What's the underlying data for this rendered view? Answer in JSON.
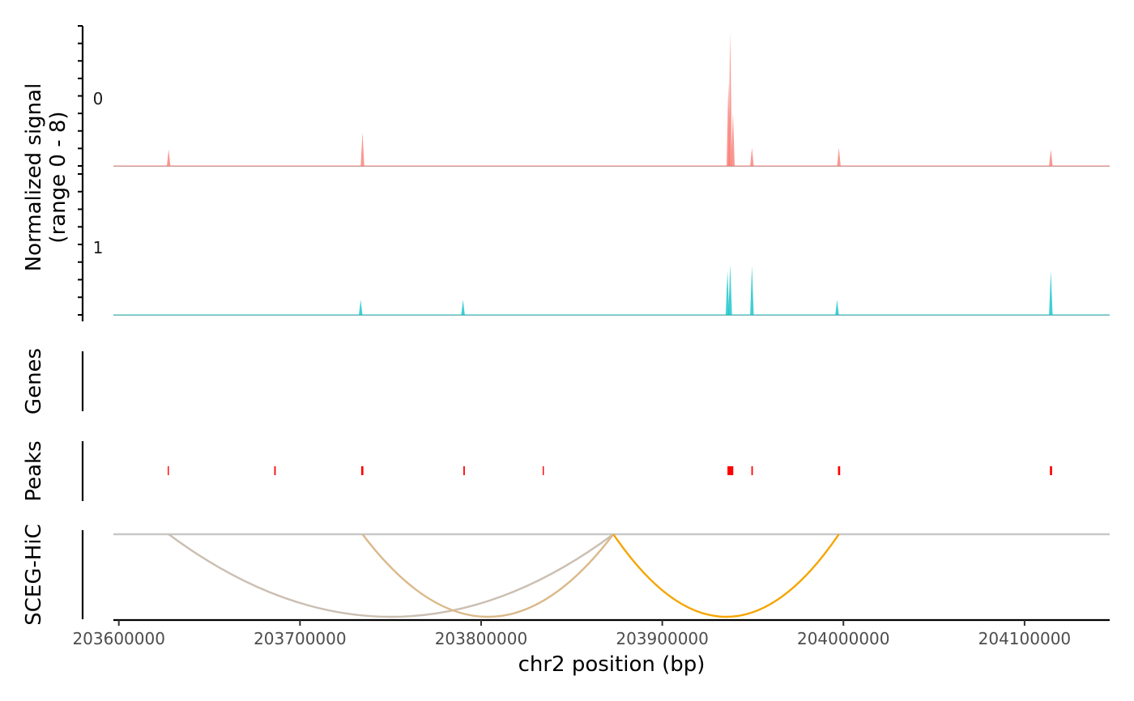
{
  "chart_data": {
    "type": "area",
    "xlabel": "chr2 position (bp)",
    "xlim": [
      203597000,
      204147000
    ],
    "xticks": [
      203600000,
      203700000,
      203800000,
      203900000,
      204000000,
      204100000
    ],
    "xtick_labels": [
      "203600000",
      "203700000",
      "203800000",
      "203900000",
      "204000000",
      "204100000"
    ],
    "coverage": {
      "ylabel": "Normalized signal",
      "ylabel_range": "(range 0 - 8)",
      "ylim": [
        0,
        8
      ],
      "tracks": [
        {
          "label": "0",
          "color": "#F8766D",
          "peaks": [
            {
              "x": 203627500,
              "y": 1.0
            },
            {
              "x": 203734500,
              "y": 2.0
            },
            {
              "x": 203937500,
              "y": 8.0
            },
            {
              "x": 203936500,
              "y": 5.0
            },
            {
              "x": 203939000,
              "y": 3.2
            },
            {
              "x": 203949500,
              "y": 1.1
            },
            {
              "x": 203997500,
              "y": 1.1
            },
            {
              "x": 204114500,
              "y": 1.0
            }
          ]
        },
        {
          "label": "1",
          "color": "#00BFC4",
          "peaks": [
            {
              "x": 203733500,
              "y": 0.9
            },
            {
              "x": 203790000,
              "y": 0.9
            },
            {
              "x": 203936000,
              "y": 2.6
            },
            {
              "x": 203937500,
              "y": 3.0
            },
            {
              "x": 203949500,
              "y": 2.9
            },
            {
              "x": 203996500,
              "y": 0.9
            },
            {
              "x": 204114500,
              "y": 2.6
            }
          ]
        }
      ]
    },
    "genes": {
      "label": "Genes"
    },
    "peaks_track": {
      "label": "Peaks",
      "color": "#FF0000",
      "regions": [
        [
          203627000,
          203627600
        ],
        [
          203685800,
          203686600
        ],
        [
          203733800,
          203735000
        ],
        [
          203790200,
          203791000
        ],
        [
          203834000,
          203834600
        ],
        [
          203936000,
          203939200
        ],
        [
          203949200,
          203950000
        ],
        [
          203997000,
          203998200
        ],
        [
          204114000,
          204115200
        ]
      ]
    },
    "links": {
      "label": "SCEG-HiC",
      "baseline_color": "#C8C8C8",
      "arcs": [
        {
          "start": 203627500,
          "end": 203873000,
          "color": "#CBBFB2",
          "depth": 1.0
        },
        {
          "start": 203734500,
          "end": 203873000,
          "color": "#DBB98A",
          "depth": 1.0
        },
        {
          "start": 203873000,
          "end": 203997500,
          "color": "#F5A500",
          "depth": 1.0
        }
      ]
    }
  }
}
